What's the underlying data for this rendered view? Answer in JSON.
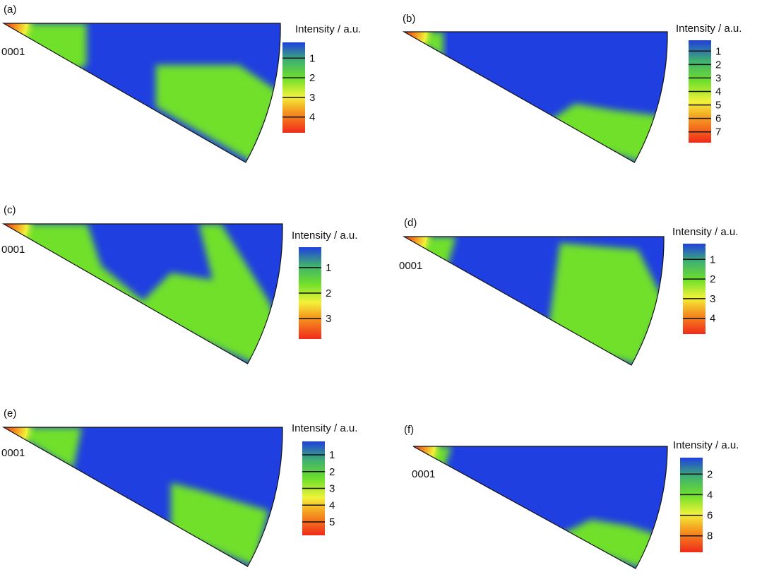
{
  "colorbar_title": "Intensity / a.u.",
  "pole_label": "0001",
  "colors": {
    "low": "#1f3fe0",
    "mid": "#6fe02a",
    "yellow": "#f2f23a",
    "high": "#f02a1a"
  },
  "panels": [
    {
      "label": "(a)",
      "ticks": [
        "1",
        "2",
        "3",
        "4"
      ]
    },
    {
      "label": "(b)",
      "ticks": [
        "1",
        "2",
        "3",
        "4",
        "5",
        "6",
        "7"
      ]
    },
    {
      "label": "(c)",
      "ticks": [
        "1",
        "2",
        "3"
      ]
    },
    {
      "label": "(d)",
      "ticks": [
        "1",
        "2",
        "3",
        "4"
      ]
    },
    {
      "label": "(e)",
      "ticks": [
        "1",
        "2",
        "3",
        "4",
        "5"
      ]
    },
    {
      "label": "(f)",
      "ticks": [
        "2",
        "4",
        "6",
        "8"
      ]
    }
  ]
}
